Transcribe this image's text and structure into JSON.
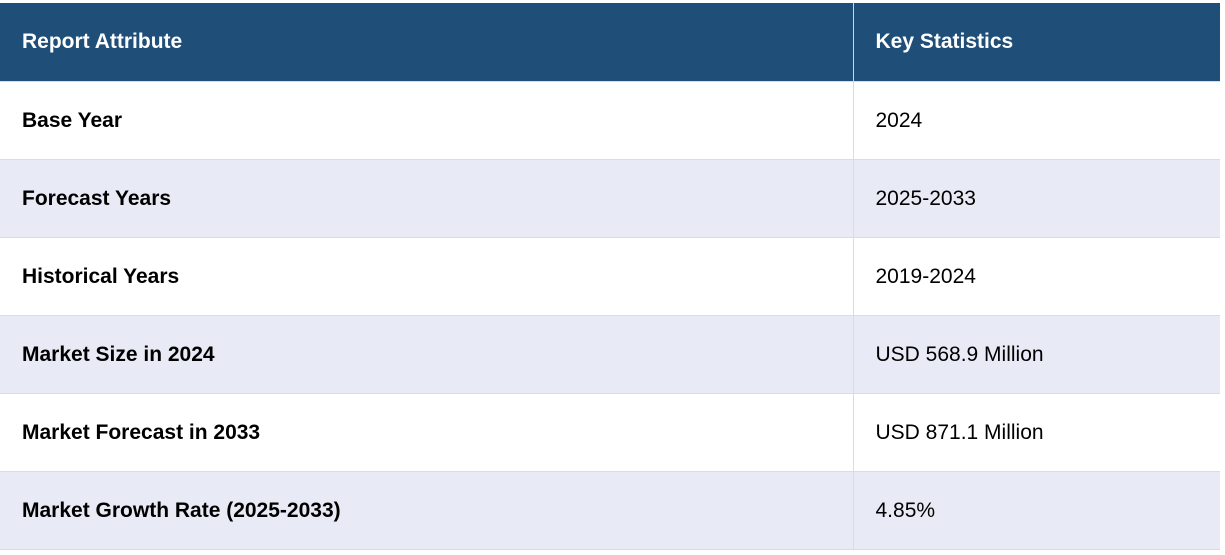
{
  "table": {
    "headers": [
      "Report Attribute",
      "Key Statistics"
    ],
    "rows": [
      {
        "attribute": "Base Year",
        "value": "2024"
      },
      {
        "attribute": "Forecast Years",
        "value": "2025-2033"
      },
      {
        "attribute": "Historical Years",
        "value": "2019-2024"
      },
      {
        "attribute": "Market Size in 2024",
        "value": "USD 568.9 Million"
      },
      {
        "attribute": "Market Forecast in 2033",
        "value": "USD 871.1 Million"
      },
      {
        "attribute": "Market Growth Rate (2025-2033)",
        "value": "4.85%"
      }
    ]
  },
  "colors": {
    "header_bg": "#1f4e79",
    "header_text": "#ffffff",
    "alt_row_bg": "#e8eaf5",
    "row_bg": "#ffffff"
  }
}
